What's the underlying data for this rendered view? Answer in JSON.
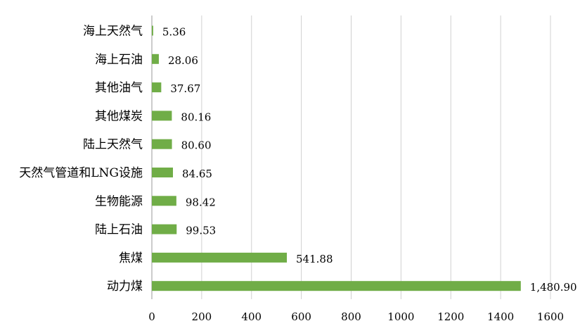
{
  "chart_data": {
    "type": "bar",
    "orientation": "horizontal",
    "title": "",
    "xlabel": "",
    "ylabel": "",
    "categories": [
      "海上天然气",
      "海上石油",
      "其他油气",
      "其他煤炭",
      "陆上天然气",
      "天然气管道和LNG设施",
      "生物能源",
      "陆上石油",
      "焦煤",
      "动力煤"
    ],
    "values": [
      5.36,
      28.06,
      37.67,
      80.16,
      80.6,
      84.65,
      98.42,
      99.53,
      541.88,
      1480.9
    ],
    "value_labels": [
      "5.36",
      "28.06",
      "37.67",
      "80.16",
      "80.60",
      "84.65",
      "98.42",
      "99.53",
      "541.88",
      "1,480.90"
    ],
    "xlim": [
      0,
      1600
    ],
    "xticks": [
      0,
      200,
      400,
      600,
      800,
      1000,
      1200,
      1400,
      1600
    ],
    "xtick_labels": [
      "0",
      "200",
      "400",
      "600",
      "800",
      "1000",
      "1200",
      "1400",
      "1600"
    ],
    "grid": "vertical",
    "legend": "none",
    "bar_color": "#70ad47"
  }
}
